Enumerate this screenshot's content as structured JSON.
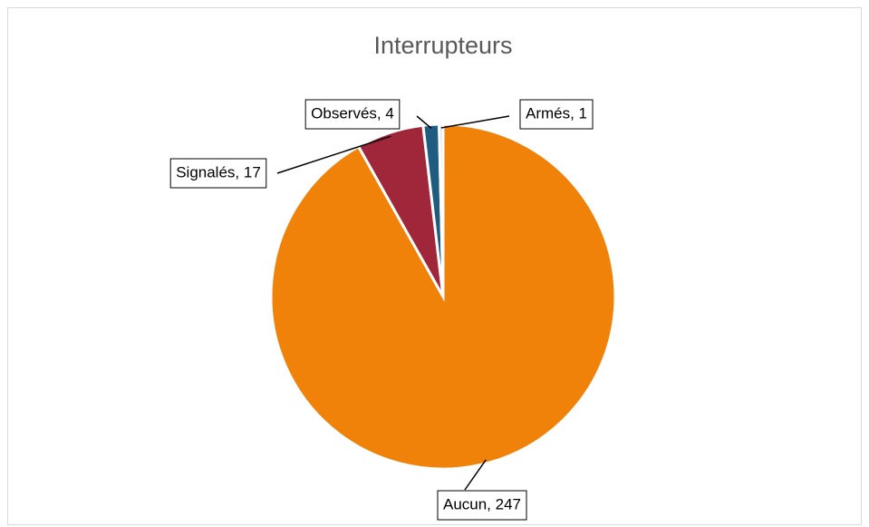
{
  "chart_data": {
    "type": "pie",
    "title": "Interrupteurs",
    "categories": [
      "Aucun",
      "Signalés",
      "Observés",
      "Armés"
    ],
    "values": [
      247,
      17,
      4,
      1
    ],
    "value_labels": [
      "Aucun, 247",
      "Signalés, 17",
      "Observés, 4",
      "Armés, 1"
    ],
    "colors": [
      "#f0820a",
      "#a0263a",
      "#1f5c80",
      "#cfe0ef"
    ]
  }
}
